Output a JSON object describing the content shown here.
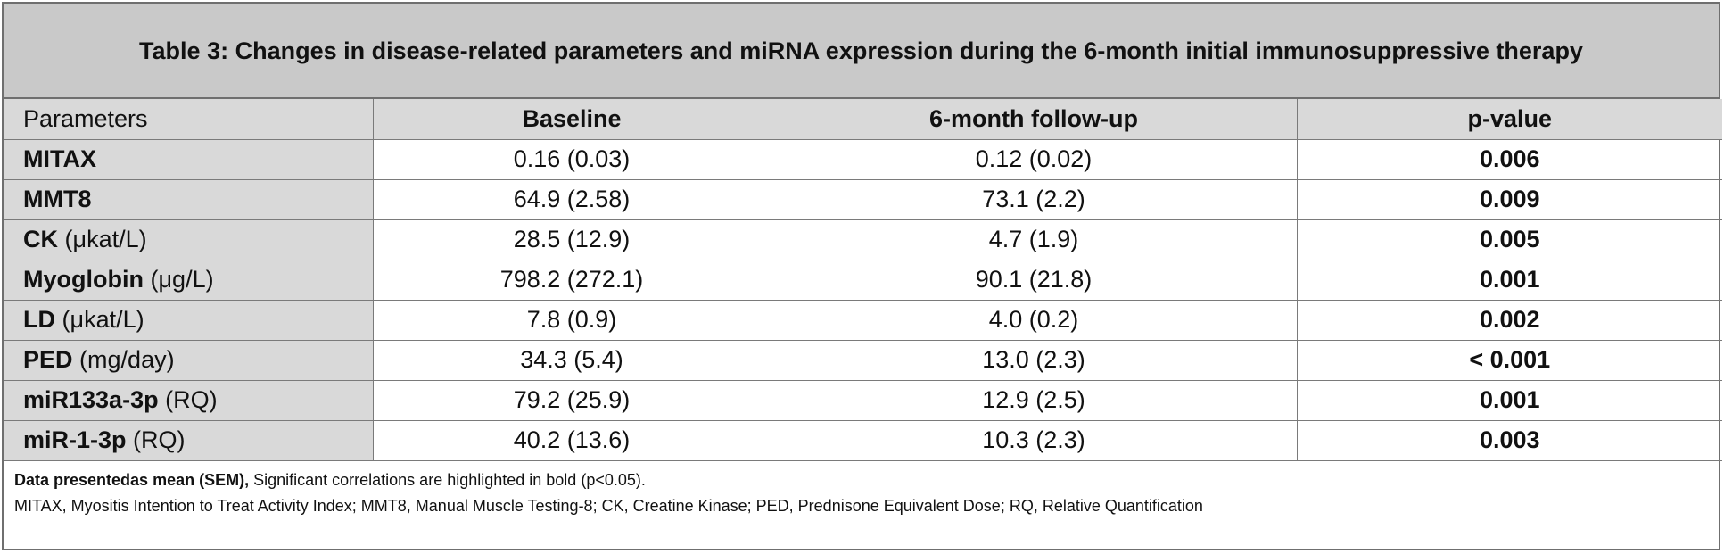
{
  "title": "Table 3: Changes in disease-related parameters and miRNA expression during the 6-month initial immunosuppressive therapy",
  "headers": [
    "Parameters",
    "Baseline",
    "6-month follow-up",
    "p-value"
  ],
  "rows": [
    {
      "name": "MITAX",
      "unit": "",
      "baseline": "0.16 (0.03)",
      "followup": "0.12 (0.02)",
      "p": "0.006"
    },
    {
      "name": "MMT8",
      "unit": "",
      "baseline": "64.9 (2.58)",
      "followup": "73.1 (2.2)",
      "p": "0.009"
    },
    {
      "name": "CK",
      "unit": "(μkat/L)",
      "baseline": "28.5 (12.9)",
      "followup": "4.7 (1.9)",
      "p": "0.005"
    },
    {
      "name": "Myoglobin",
      "unit": "(μg/L)",
      "baseline": "798.2 (272.1)",
      "followup": "90.1 (21.8)",
      "p": "0.001"
    },
    {
      "name": "LD",
      "unit": "(μkat/L)",
      "baseline": "7.8 (0.9)",
      "followup": "4.0 (0.2)",
      "p": "0.002"
    },
    {
      "name": "PED",
      "unit": "(mg/day)",
      "baseline": "34.3 (5.4)",
      "followup": "13.0 (2.3)",
      "p": "< 0.001"
    },
    {
      "name": "miR133a-3p",
      "unit": "(RQ)",
      "baseline": "79.2 (25.9)",
      "followup": "12.9 (2.5)",
      "p": "0.001"
    },
    {
      "name": "miR-1-3p",
      "unit": "(RQ)",
      "baseline": "40.2 (13.6)",
      "followup": "10.3 (2.3)",
      "p": "0.003"
    }
  ],
  "notes": {
    "line1_bold": "Data presentedas mean (SEM),",
    "line1_rest": " Significant correlations are highlighted in bold (p<0.05).",
    "line2": "MITAX, Myositis Intention to Treat Activity Index; MMT8, Manual Muscle Testing-8; CK, Creatine Kinase; PED, Prednisone Equivalent Dose; RQ, Relative Quantification"
  }
}
